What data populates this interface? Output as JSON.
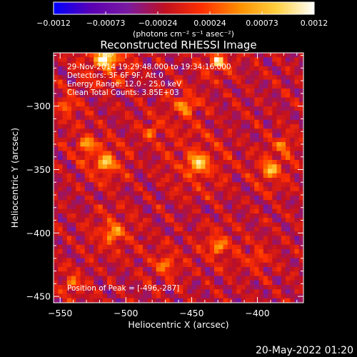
{
  "colorbar": {
    "ticks": [
      "-0.0012",
      "-0.00073",
      "-0.00024",
      "0.00024",
      "0.00073",
      "0.0012"
    ],
    "units": "(photons cm⁻² s⁻¹ asec⁻²)",
    "range": [
      -0.0012,
      0.0012
    ],
    "colormap": [
      "#0000ff",
      "#5a00b4",
      "#7a1aa0",
      "#c01020",
      "#ff3000",
      "#ff9000",
      "#ffd040",
      "#ffffff"
    ]
  },
  "chart_data": {
    "type": "heatmap",
    "title": "Reconstructed RHESSI Image",
    "xlabel": "Heliocentric X (arcsec)",
    "ylabel": "Heliocentric Y (arcsec)",
    "xlim": [
      -555,
      -365
    ],
    "ylim": [
      -455,
      -258
    ],
    "xticks": [
      -550,
      -500,
      -450,
      -400
    ],
    "yticks": [
      -300,
      -350,
      -400,
      -450
    ],
    "xtick_labels": [
      "−550",
      "−500",
      "−450",
      "−400"
    ],
    "ytick_labels": [
      "−300",
      "−350",
      "−400",
      "−450"
    ],
    "peak": [
      -496,
      -287
    ],
    "grid": false,
    "annotations": {
      "time": "29-Nov-2014 19:29:48.000 to 19:34:16.000",
      "detectors": "Detectors: 3F 6F 9F, Att 0",
      "energy": "Energy Range: 12.0 - 25.0 keV",
      "clean": "Clean     Total Counts: 3.85E+03",
      "peak_label": "Position of Peak = [-496,-287]"
    },
    "sources": [
      {
        "x": -515,
        "y": -262,
        "amp": 1.0,
        "w": 14
      },
      {
        "x": -515,
        "y": -345,
        "amp": 0.75,
        "w": 12
      },
      {
        "x": -530,
        "y": -330,
        "amp": 0.55,
        "w": 10
      },
      {
        "x": -445,
        "y": -345,
        "amp": 0.7,
        "w": 16
      },
      {
        "x": -455,
        "y": -300,
        "amp": 0.55,
        "w": 12
      },
      {
        "x": -430,
        "y": -265,
        "amp": 0.8,
        "w": 10
      },
      {
        "x": -390,
        "y": -350,
        "amp": 0.65,
        "w": 12
      },
      {
        "x": -380,
        "y": -330,
        "amp": 0.45,
        "w": 9
      },
      {
        "x": -510,
        "y": -400,
        "amp": 0.55,
        "w": 14
      },
      {
        "x": -470,
        "y": -425,
        "amp": 0.45,
        "w": 12
      },
      {
        "x": -430,
        "y": -410,
        "amp": 0.55,
        "w": 12
      },
      {
        "x": -400,
        "y": -420,
        "amp": 0.4,
        "w": 10
      },
      {
        "x": -545,
        "y": -300,
        "amp": 0.45,
        "w": 10
      },
      {
        "x": -540,
        "y": -440,
        "amp": 0.45,
        "w": 10
      },
      {
        "x": -480,
        "y": -320,
        "amp": 0.4,
        "w": 10
      }
    ]
  },
  "footer": {
    "date": "20-May-2022 01:20"
  }
}
